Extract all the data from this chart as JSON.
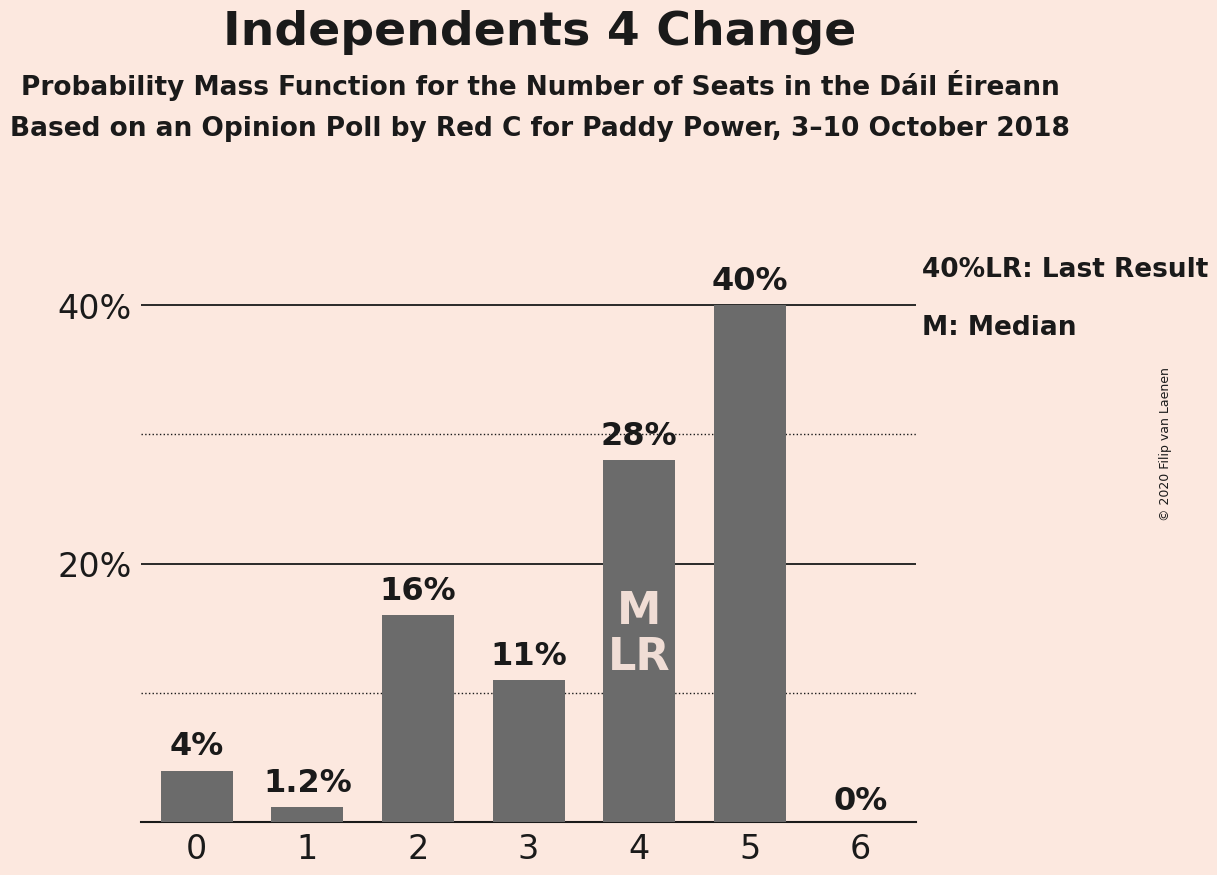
{
  "title": "Independents 4 Change",
  "subtitle1": "Probability Mass Function for the Number of Seats in the Dáil Éireann",
  "subtitle2": "Based on an Opinion Poll by Red C for Paddy Power, 3–10 October 2018",
  "copyright": "© 2020 Filip van Laenen",
  "categories": [
    0,
    1,
    2,
    3,
    4,
    5,
    6
  ],
  "values": [
    4,
    1.2,
    16,
    11,
    28,
    40,
    0
  ],
  "bar_labels": [
    "4%",
    "1.2%",
    "16%",
    "11%",
    "28%",
    "40%",
    "0%"
  ],
  "bar_color": "#6b6b6b",
  "background_color": "#fce8df",
  "text_color": "#1a1a1a",
  "bar_label_color_inside": "#f0ddd5",
  "ylim": [
    0,
    45
  ],
  "yticks": [
    20,
    40
  ],
  "ytick_labels": [
    "20%",
    "40%"
  ],
  "solid_hlines": [
    20,
    40
  ],
  "dotted_hlines": [
    10,
    30
  ],
  "median_bar": 4,
  "last_result_bar": 4,
  "median_label": "M",
  "last_result_label": "LR",
  "legend_lr_prefix": "40%",
  "legend_lr_suffix": "LR: Last Result",
  "legend_m": "M: Median",
  "title_fontsize": 34,
  "subtitle_fontsize": 19,
  "tick_fontsize": 24,
  "bar_label_fontsize": 23,
  "legend_fontsize": 19,
  "inside_label_fontsize": 32,
  "copyright_fontsize": 9
}
